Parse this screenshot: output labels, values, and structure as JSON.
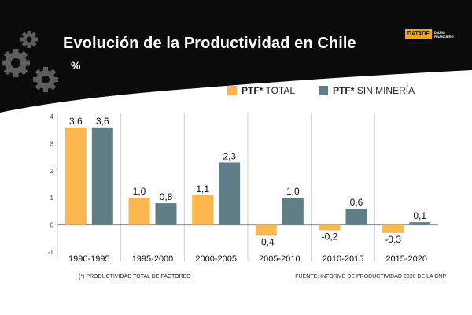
{
  "header": {
    "title": "Evolución de la Productividad en Chile",
    "subtitle": "%",
    "brand_mark": "DATADF",
    "brand_tagline": "DIARIO FINANCIERO"
  },
  "colors": {
    "banner": "#0b0b0b",
    "gear": "#5d5d5d",
    "total": "#fdb74f",
    "sin_mineria": "#5f7f86",
    "grid": "#d0d0d0",
    "axis_text": "#444444"
  },
  "chart_data": {
    "type": "bar",
    "title": "Evolución de la Productividad en Chile",
    "subtitle": "%",
    "categories": [
      "1990-1995",
      "1995-2000",
      "2000-2005",
      "2005-2010",
      "2010-2015",
      "2015-2020"
    ],
    "series": [
      {
        "name": "TOTAL",
        "name_prefix": "PTF*",
        "color": "#fdb74f",
        "values": [
          3.6,
          1.0,
          1.1,
          -0.4,
          -0.2,
          -0.3
        ],
        "labels": [
          "3,6",
          "1,0",
          "1,1",
          "-0,4",
          "-0,2",
          "-0,3"
        ]
      },
      {
        "name": "SIN MINERÍA",
        "name_prefix": "PTF*",
        "color": "#5f7f86",
        "values": [
          3.6,
          0.8,
          2.3,
          1.0,
          0.6,
          0.1
        ],
        "labels": [
          "3,6",
          "0,8",
          "2,3",
          "1,0",
          "0,6",
          "0,1"
        ]
      }
    ],
    "yticks": [
      "-1",
      "0",
      "1",
      "2",
      "3",
      "4"
    ],
    "ylim": [
      -1,
      4
    ],
    "legend": "top-right",
    "grid": "vertical separators between categories"
  },
  "footer": {
    "note": "(*)  PRODUCTIVIDAD TOTAL DE FACTORES",
    "source": "FUENTE: INFORME DE PRODUCTIVIDAD 2020 DE LA CNP"
  }
}
